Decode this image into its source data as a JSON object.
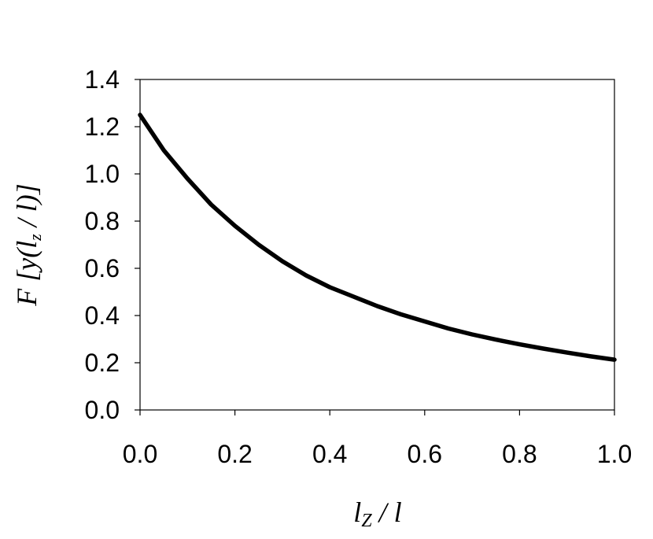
{
  "chart_data": {
    "type": "line",
    "title": "",
    "xlabel": {
      "var": "l",
      "sub": "Z",
      "rest": " / l"
    },
    "ylabel": {
      "pre": "F [y(l",
      "sub": "z",
      "post": " / l)]"
    },
    "xlim": [
      0.0,
      1.0
    ],
    "ylim": [
      0.0,
      1.4
    ],
    "xticks": [
      "0.0",
      "0.2",
      "0.4",
      "0.6",
      "0.8",
      "1.0"
    ],
    "yticks": [
      "0.0",
      "0.2",
      "0.4",
      "0.6",
      "0.8",
      "1.0",
      "1.2",
      "1.4"
    ],
    "grid": false,
    "legend": "none",
    "series": [
      {
        "color": "#000000",
        "x": [
          0.0,
          0.05,
          0.1,
          0.15,
          0.2,
          0.25,
          0.3,
          0.35,
          0.4,
          0.45,
          0.5,
          0.55,
          0.6,
          0.65,
          0.7,
          0.75,
          0.8,
          0.85,
          0.9,
          0.95,
          1.0
        ],
        "y": [
          1.25,
          1.1,
          0.98,
          0.87,
          0.78,
          0.7,
          0.63,
          0.57,
          0.52,
          0.48,
          0.44,
          0.405,
          0.375,
          0.345,
          0.32,
          0.298,
          0.278,
          0.26,
          0.243,
          0.227,
          0.213
        ]
      }
    ]
  }
}
